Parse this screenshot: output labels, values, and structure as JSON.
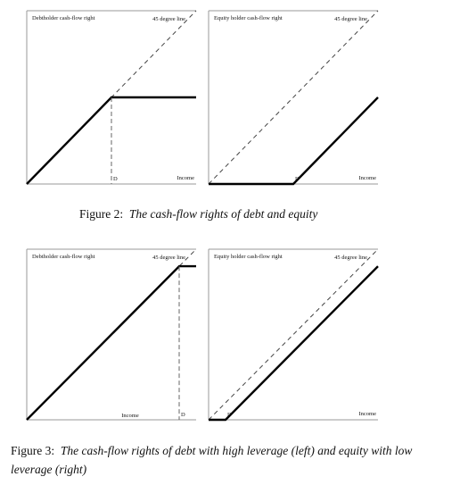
{
  "figure2": {
    "caption_label": "Figure 2:",
    "caption_text": "The cash-flow rights of debt and equity",
    "panels": [
      {
        "title": "Debtholder cash-flow right",
        "reference_label": "45 degree line",
        "x_label": "Income",
        "marker_label": "D",
        "chart_data": {
          "type": "line",
          "title": "Debtholder cash-flow right",
          "xlabel": "Income",
          "ylabel": "",
          "annotation": "D",
          "xlim": [
            0,
            100
          ],
          "ylim": [
            0,
            100
          ],
          "series": [
            {
              "name": "45 degree line",
              "style": "dashed",
              "x": [
                0,
                100
              ],
              "y": [
                0,
                100
              ]
            },
            {
              "style": "solid",
              "x": [
                0,
                50,
                100
              ],
              "y": [
                0,
                50,
                50
              ]
            }
          ],
          "marker": {
            "x": 50,
            "style": "dashed-vertical"
          }
        }
      },
      {
        "title": "Equity holder cash-flow right",
        "reference_label": "45 degree line",
        "x_label": "Income",
        "marker_label": "D",
        "chart_data": {
          "type": "line",
          "title": "Equity holder cash-flow right",
          "xlabel": "Income",
          "ylabel": "",
          "annotation": "D",
          "xlim": [
            0,
            100
          ],
          "ylim": [
            0,
            100
          ],
          "series": [
            {
              "name": "45 degree line",
              "style": "dashed",
              "x": [
                0,
                100
              ],
              "y": [
                0,
                100
              ]
            },
            {
              "style": "solid",
              "x": [
                0,
                50,
                100
              ],
              "y": [
                0,
                0,
                50
              ]
            }
          ],
          "marker": {
            "x": 50,
            "style": "label-only"
          }
        }
      }
    ]
  },
  "figure3": {
    "caption_label": "Figure 3:",
    "caption_text": "The cash-flow rights of debt with high leverage (left) and equity with low leverage (right)",
    "panels": [
      {
        "title": "Debtholder cash-flow right",
        "reference_label": "45 degree line",
        "x_label": "Income",
        "marker_label": "D",
        "chart_data": {
          "type": "line",
          "title": "Debtholder cash-flow right",
          "xlabel": "Income",
          "ylabel": "",
          "annotation": "D",
          "xlim": [
            0,
            100
          ],
          "ylim": [
            0,
            100
          ],
          "series": [
            {
              "name": "45 degree line",
              "style": "dashed",
              "x": [
                0,
                100
              ],
              "y": [
                0,
                100
              ]
            },
            {
              "style": "solid",
              "x": [
                0,
                90,
                100
              ],
              "y": [
                0,
                90,
                90
              ]
            }
          ],
          "marker": {
            "x": 90,
            "style": "dashed-vertical"
          }
        }
      },
      {
        "title": "Equity holder cash-flow right",
        "reference_label": "45 degree line",
        "x_label": "Income",
        "marker_label": "D",
        "chart_data": {
          "type": "line",
          "title": "Equity holder cash-flow right",
          "xlabel": "Income",
          "ylabel": "",
          "annotation": "D",
          "xlim": [
            0,
            100
          ],
          "ylim": [
            0,
            100
          ],
          "series": [
            {
              "name": "45 degree line",
              "style": "dashed",
              "x": [
                0,
                100
              ],
              "y": [
                0,
                100
              ]
            },
            {
              "style": "solid",
              "x": [
                0,
                10,
                100
              ],
              "y": [
                0,
                0,
                90
              ]
            }
          ],
          "marker": {
            "x": 10,
            "style": "label-only"
          }
        }
      }
    ]
  }
}
